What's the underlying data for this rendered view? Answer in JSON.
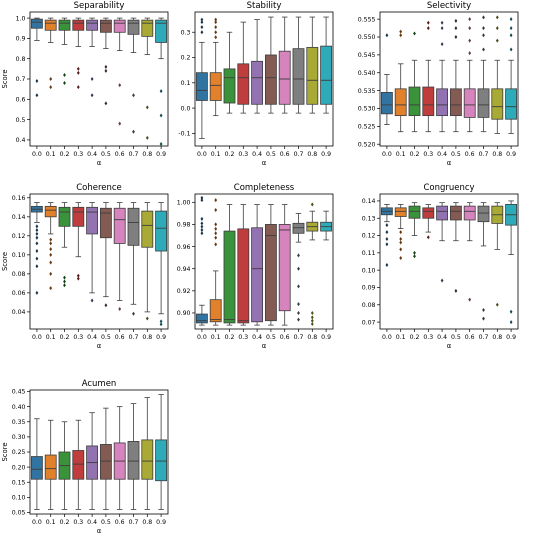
{
  "colors": [
    "#3274a1",
    "#e1812c",
    "#3a923a",
    "#c03d3e",
    "#9372b2",
    "#845b53",
    "#d684bd",
    "#7f7f7f",
    "#a9aa35",
    "#2eaab8"
  ],
  "chart_data": [
    {
      "type": "box",
      "title": "Separability",
      "xlabel": "α",
      "ylabel": "Score",
      "categories": [
        "0.0",
        "0.1",
        "0.2",
        "0.3",
        "0.4",
        "0.5",
        "0.6",
        "0.7",
        "0.8",
        "0.9"
      ],
      "ylim": [
        0.37,
        1.03
      ],
      "yticks": [
        0.4,
        0.5,
        0.6,
        0.7,
        0.8,
        0.9,
        1.0
      ],
      "boxes": [
        {
          "whislo": 0.89,
          "q1": 0.95,
          "med": 0.98,
          "q3": 0.995,
          "whishi": 1.0,
          "fliers": [
            0.69,
            0.62
          ]
        },
        {
          "whislo": 0.88,
          "q1": 0.94,
          "med": 0.975,
          "q3": 0.99,
          "whishi": 1.0,
          "fliers": [
            0.7,
            0.66
          ]
        },
        {
          "whislo": 0.87,
          "q1": 0.94,
          "med": 0.975,
          "q3": 0.99,
          "whishi": 1.0,
          "fliers": [
            0.72,
            0.68
          ]
        },
        {
          "whislo": 0.86,
          "q1": 0.94,
          "med": 0.975,
          "q3": 0.99,
          "whishi": 1.0,
          "fliers": [
            0.75,
            0.73,
            0.66
          ]
        },
        {
          "whislo": 0.86,
          "q1": 0.94,
          "med": 0.975,
          "q3": 0.99,
          "whishi": 1.0,
          "fliers": [
            0.7,
            0.62
          ]
        },
        {
          "whislo": 0.85,
          "q1": 0.93,
          "med": 0.975,
          "q3": 0.99,
          "whishi": 1.0,
          "fliers": [
            0.76,
            0.74,
            0.58
          ]
        },
        {
          "whislo": 0.84,
          "q1": 0.93,
          "med": 0.975,
          "q3": 0.99,
          "whishi": 1.0,
          "fliers": [
            0.67,
            0.48
          ]
        },
        {
          "whislo": 0.83,
          "q1": 0.92,
          "med": 0.975,
          "q3": 0.99,
          "whishi": 1.0,
          "fliers": [
            0.62,
            0.44
          ]
        },
        {
          "whislo": 0.82,
          "q1": 0.91,
          "med": 0.975,
          "q3": 0.99,
          "whishi": 1.0,
          "fliers": [
            0.56,
            0.41
          ]
        },
        {
          "whislo": 0.8,
          "q1": 0.88,
          "med": 0.975,
          "q3": 0.99,
          "whishi": 1.0,
          "fliers": [
            0.64,
            0.52,
            0.38
          ]
        }
      ]
    },
    {
      "type": "box",
      "title": "Stability",
      "xlabel": "α",
      "ylabel": "",
      "categories": [
        "0.0",
        "0.1",
        "0.2",
        "0.3",
        "0.4",
        "0.5",
        "0.6",
        "0.7",
        "0.8",
        "0.9"
      ],
      "ylim": [
        -0.15,
        0.38
      ],
      "yticks": [
        -0.1,
        0.0,
        0.1,
        0.2,
        0.3
      ],
      "boxes": [
        {
          "whislo": -0.12,
          "q1": 0.03,
          "med": 0.07,
          "q3": 0.14,
          "whishi": 0.26,
          "fliers": [
            0.3,
            0.32,
            0.34,
            0.35
          ]
        },
        {
          "whislo": -0.03,
          "q1": 0.03,
          "med": 0.09,
          "q3": 0.14,
          "whishi": 0.26,
          "fliers": [
            0.28,
            0.3,
            0.32,
            0.34,
            0.35
          ]
        },
        {
          "whislo": -0.02,
          "q1": 0.02,
          "med": 0.12,
          "q3": 0.155,
          "whishi": 0.3,
          "fliers": []
        },
        {
          "whislo": -0.02,
          "q1": 0.015,
          "med": 0.12,
          "q3": 0.175,
          "whishi": 0.34,
          "fliers": []
        },
        {
          "whislo": -0.02,
          "q1": 0.015,
          "med": 0.12,
          "q3": 0.185,
          "whishi": 0.35,
          "fliers": []
        },
        {
          "whislo": -0.02,
          "q1": 0.015,
          "med": 0.12,
          "q3": 0.21,
          "whishi": 0.36,
          "fliers": []
        },
        {
          "whislo": -0.02,
          "q1": 0.015,
          "med": 0.115,
          "q3": 0.225,
          "whishi": 0.36,
          "fliers": []
        },
        {
          "whislo": -0.02,
          "q1": 0.015,
          "med": 0.115,
          "q3": 0.235,
          "whishi": 0.36,
          "fliers": []
        },
        {
          "whislo": -0.02,
          "q1": 0.015,
          "med": 0.11,
          "q3": 0.24,
          "whishi": 0.36,
          "fliers": []
        },
        {
          "whislo": -0.02,
          "q1": 0.015,
          "med": 0.11,
          "q3": 0.245,
          "whishi": 0.36,
          "fliers": []
        }
      ]
    },
    {
      "type": "box",
      "title": "Selectivity",
      "xlabel": "α",
      "ylabel": "",
      "categories": [
        "0.0",
        "0.1",
        "0.2",
        "0.3",
        "0.4",
        "0.5",
        "0.6",
        "0.7",
        "0.8",
        "0.9"
      ],
      "ylim": [
        0.5195,
        0.557
      ],
      "yticks": [
        0.52,
        0.525,
        0.53,
        0.535,
        0.54,
        0.545,
        0.55,
        0.555
      ],
      "boxes": [
        {
          "whislo": 0.5255,
          "q1": 0.5285,
          "med": 0.531,
          "q3": 0.5345,
          "whishi": 0.5395,
          "fliers": [
            0.5505
          ]
        },
        {
          "whislo": 0.5235,
          "q1": 0.528,
          "med": 0.531,
          "q3": 0.5355,
          "whishi": 0.5425,
          "fliers": [
            0.5505,
            0.5515
          ]
        },
        {
          "whislo": 0.5235,
          "q1": 0.528,
          "med": 0.531,
          "q3": 0.536,
          "whishi": 0.5435,
          "fliers": [
            0.551
          ]
        },
        {
          "whislo": 0.5235,
          "q1": 0.528,
          "med": 0.531,
          "q3": 0.536,
          "whishi": 0.5435,
          "fliers": [
            0.5525,
            0.554
          ]
        },
        {
          "whislo": 0.5235,
          "q1": 0.528,
          "med": 0.531,
          "q3": 0.5355,
          "whishi": 0.5435,
          "fliers": [
            0.548,
            0.5525,
            0.554
          ]
        },
        {
          "whislo": 0.5235,
          "q1": 0.528,
          "med": 0.531,
          "q3": 0.5355,
          "whishi": 0.5435,
          "fliers": [
            0.55,
            0.5525,
            0.5545
          ]
        },
        {
          "whislo": 0.5235,
          "q1": 0.5275,
          "med": 0.531,
          "q3": 0.5355,
          "whishi": 0.5435,
          "fliers": [
            0.5455,
            0.549,
            0.5525,
            0.555
          ]
        },
        {
          "whislo": 0.5235,
          "q1": 0.5275,
          "med": 0.531,
          "q3": 0.5355,
          "whishi": 0.5435,
          "fliers": [
            0.5465,
            0.5505,
            0.5525,
            0.5555
          ]
        },
        {
          "whislo": 0.523,
          "q1": 0.527,
          "med": 0.5305,
          "q3": 0.5355,
          "whishi": 0.5435,
          "fliers": [
            0.549,
            0.5525,
            0.5555
          ]
        },
        {
          "whislo": 0.523,
          "q1": 0.527,
          "med": 0.5305,
          "q3": 0.5355,
          "whishi": 0.5435,
          "fliers": [
            0.5465,
            0.5505,
            0.5525,
            0.555
          ]
        }
      ]
    },
    {
      "type": "box",
      "title": "Coherence",
      "xlabel": "α",
      "ylabel": "Score",
      "categories": [
        "0.0",
        "0.1",
        "0.2",
        "0.3",
        "0.4",
        "0.5",
        "0.6",
        "0.7",
        "0.8",
        "0.9"
      ],
      "ylim": [
        0.022,
        0.164
      ],
      "yticks": [
        0.04,
        0.06,
        0.08,
        0.1,
        0.12,
        0.14,
        0.16
      ],
      "boxes": [
        {
          "whislo": 0.134,
          "q1": 0.145,
          "med": 0.148,
          "q3": 0.151,
          "whishi": 0.155,
          "fliers": [
            0.13,
            0.126,
            0.122,
            0.118,
            0.112,
            0.104,
            0.096,
            0.088,
            0.06
          ]
        },
        {
          "whislo": 0.122,
          "q1": 0.14,
          "med": 0.147,
          "q3": 0.151,
          "whishi": 0.155,
          "fliers": [
            0.116,
            0.112,
            0.106,
            0.1,
            0.092,
            0.08,
            0.065
          ]
        },
        {
          "whislo": 0.108,
          "q1": 0.13,
          "med": 0.145,
          "q3": 0.15,
          "whishi": 0.155,
          "fliers": [
            0.076,
            0.072,
            0.068
          ]
        },
        {
          "whislo": 0.098,
          "q1": 0.13,
          "med": 0.145,
          "q3": 0.15,
          "whishi": 0.155,
          "fliers": [
            0.078,
            0.075
          ]
        },
        {
          "whislo": 0.06,
          "q1": 0.122,
          "med": 0.145,
          "q3": 0.15,
          "whishi": 0.155,
          "fliers": [
            0.052
          ]
        },
        {
          "whislo": 0.056,
          "q1": 0.118,
          "med": 0.144,
          "q3": 0.149,
          "whishi": 0.155,
          "fliers": [
            0.047
          ]
        },
        {
          "whislo": 0.052,
          "q1": 0.112,
          "med": 0.137,
          "q3": 0.149,
          "whishi": 0.155,
          "fliers": [
            0.043
          ]
        },
        {
          "whislo": 0.048,
          "q1": 0.11,
          "med": 0.134,
          "q3": 0.149,
          "whishi": 0.155,
          "fliers": [
            0.038
          ]
        },
        {
          "whislo": 0.04,
          "q1": 0.108,
          "med": 0.131,
          "q3": 0.146,
          "whishi": 0.155,
          "fliers": [
            0.033
          ]
        },
        {
          "whislo": 0.038,
          "q1": 0.104,
          "med": 0.128,
          "q3": 0.146,
          "whishi": 0.155,
          "fliers": [
            0.03,
            0.027
          ]
        }
      ]
    },
    {
      "type": "box",
      "title": "Completeness",
      "xlabel": "α",
      "ylabel": "",
      "categories": [
        "0.0",
        "0.1",
        "0.2",
        "0.3",
        "0.4",
        "0.5",
        "0.6",
        "0.7",
        "0.8",
        "0.9"
      ],
      "ylim": [
        0.8855,
        1.0075
      ],
      "yticks": [
        0.9,
        0.92,
        0.94,
        0.96,
        0.98,
        1.0
      ],
      "boxes": [
        {
          "whislo": 0.889,
          "q1": 0.891,
          "med": 0.893,
          "q3": 0.899,
          "whishi": 0.907,
          "fliers": [
            0.972,
            0.975,
            0.978,
            0.981,
            0.985,
            1.002,
            1.004
          ]
        },
        {
          "whislo": 0.889,
          "q1": 0.892,
          "med": 0.894,
          "q3": 0.912,
          "whishi": 0.938,
          "fliers": [
            0.962,
            0.968,
            0.972,
            0.976,
            0.98,
            0.993,
            1.002
          ]
        },
        {
          "whislo": 0.889,
          "q1": 0.891,
          "med": 0.894,
          "q3": 0.974,
          "whishi": 0.998,
          "fliers": []
        },
        {
          "whislo": 0.889,
          "q1": 0.891,
          "med": 0.893,
          "q3": 0.976,
          "whishi": 0.998,
          "fliers": []
        },
        {
          "whislo": 0.889,
          "q1": 0.892,
          "med": 0.94,
          "q3": 0.977,
          "whishi": 0.998,
          "fliers": []
        },
        {
          "whislo": 0.889,
          "q1": 0.893,
          "med": 0.97,
          "q3": 0.98,
          "whishi": 0.998,
          "fliers": []
        },
        {
          "whislo": 0.889,
          "q1": 0.902,
          "med": 0.975,
          "q3": 0.98,
          "whishi": 0.998,
          "fliers": []
        },
        {
          "whislo": 0.964,
          "q1": 0.972,
          "med": 0.977,
          "q3": 0.981,
          "whishi": 0.99,
          "fliers": [
            0.952,
            0.94,
            0.924,
            0.908,
            0.9,
            0.894
          ]
        },
        {
          "whislo": 0.966,
          "q1": 0.974,
          "med": 0.978,
          "q3": 0.982,
          "whishi": 0.992,
          "fliers": [
            0.998,
            0.9,
            0.896,
            0.893,
            0.89
          ]
        },
        {
          "whislo": 0.966,
          "q1": 0.974,
          "med": 0.978,
          "q3": 0.982,
          "whishi": 0.992,
          "fliers": []
        }
      ]
    },
    {
      "type": "box",
      "title": "Congruency",
      "xlabel": "α",
      "ylabel": "",
      "categories": [
        "0.0",
        "0.1",
        "0.2",
        "0.3",
        "0.4",
        "0.5",
        "0.6",
        "0.7",
        "0.8",
        "0.9"
      ],
      "ylim": [
        0.066,
        0.144
      ],
      "yticks": [
        0.07,
        0.08,
        0.09,
        0.1,
        0.11,
        0.12,
        0.13,
        0.14
      ],
      "boxes": [
        {
          "whislo": 0.128,
          "q1": 0.132,
          "med": 0.134,
          "q3": 0.136,
          "whishi": 0.138,
          "fliers": [
            0.126,
            0.122,
            0.118,
            0.115,
            0.103
          ]
        },
        {
          "whislo": 0.124,
          "q1": 0.131,
          "med": 0.134,
          "q3": 0.136,
          "whishi": 0.138,
          "fliers": [
            0.122,
            0.118,
            0.116,
            0.112,
            0.107
          ]
        },
        {
          "whislo": 0.12,
          "q1": 0.13,
          "med": 0.134,
          "q3": 0.137,
          "whishi": 0.139,
          "fliers": [
            0.11,
            0.108
          ]
        },
        {
          "whislo": 0.122,
          "q1": 0.13,
          "med": 0.134,
          "q3": 0.136,
          "whishi": 0.138,
          "fliers": [
            0.119
          ]
        },
        {
          "whislo": 0.117,
          "q1": 0.129,
          "med": 0.134,
          "q3": 0.137,
          "whishi": 0.139,
          "fliers": [
            0.094
          ]
        },
        {
          "whislo": 0.117,
          "q1": 0.129,
          "med": 0.134,
          "q3": 0.137,
          "whishi": 0.139,
          "fliers": [
            0.088
          ]
        },
        {
          "whislo": 0.117,
          "q1": 0.129,
          "med": 0.134,
          "q3": 0.137,
          "whishi": 0.139,
          "fliers": [
            0.083
          ]
        },
        {
          "whislo": 0.114,
          "q1": 0.128,
          "med": 0.133,
          "q3": 0.137,
          "whishi": 0.139,
          "fliers": [
            0.077,
            0.072
          ]
        },
        {
          "whislo": 0.112,
          "q1": 0.127,
          "med": 0.132,
          "q3": 0.137,
          "whishi": 0.139,
          "fliers": [
            0.08
          ]
        },
        {
          "whislo": 0.109,
          "q1": 0.126,
          "med": 0.132,
          "q3": 0.138,
          "whishi": 0.14,
          "fliers": [
            0.076,
            0.07
          ]
        }
      ]
    },
    {
      "type": "box",
      "title": "Acumen",
      "xlabel": "α",
      "ylabel": "Score",
      "categories": [
        "0.0",
        "0.1",
        "0.2",
        "0.3",
        "0.4",
        "0.5",
        "0.6",
        "0.7",
        "0.8",
        "0.9"
      ],
      "ylim": [
        0.045,
        0.455
      ],
      "yticks": [
        0.05,
        0.1,
        0.15,
        0.2,
        0.25,
        0.3,
        0.35,
        0.4,
        0.45
      ],
      "boxes": [
        {
          "whislo": 0.06,
          "q1": 0.16,
          "med": 0.193,
          "q3": 0.235,
          "whishi": 0.36,
          "fliers": []
        },
        {
          "whislo": 0.06,
          "q1": 0.16,
          "med": 0.195,
          "q3": 0.24,
          "whishi": 0.355,
          "fliers": []
        },
        {
          "whislo": 0.06,
          "q1": 0.16,
          "med": 0.205,
          "q3": 0.25,
          "whishi": 0.35,
          "fliers": []
        },
        {
          "whislo": 0.06,
          "q1": 0.16,
          "med": 0.21,
          "q3": 0.255,
          "whishi": 0.355,
          "fliers": []
        },
        {
          "whislo": 0.06,
          "q1": 0.16,
          "med": 0.215,
          "q3": 0.27,
          "whishi": 0.38,
          "fliers": []
        },
        {
          "whislo": 0.06,
          "q1": 0.16,
          "med": 0.22,
          "q3": 0.275,
          "whishi": 0.395,
          "fliers": []
        },
        {
          "whislo": 0.06,
          "q1": 0.16,
          "med": 0.22,
          "q3": 0.28,
          "whishi": 0.4,
          "fliers": []
        },
        {
          "whislo": 0.06,
          "q1": 0.16,
          "med": 0.22,
          "q3": 0.285,
          "whishi": 0.41,
          "fliers": []
        },
        {
          "whislo": 0.06,
          "q1": 0.16,
          "med": 0.22,
          "q3": 0.29,
          "whishi": 0.43,
          "fliers": []
        },
        {
          "whislo": 0.06,
          "q1": 0.155,
          "med": 0.22,
          "q3": 0.29,
          "whishi": 0.44,
          "fliers": []
        }
      ]
    }
  ]
}
